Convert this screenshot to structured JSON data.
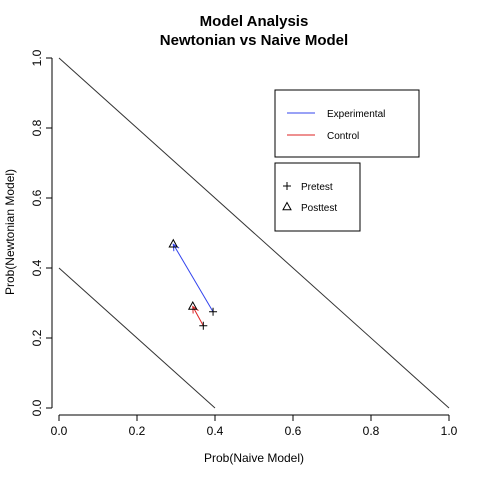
{
  "chart_data": {
    "type": "scatter",
    "title": "Model Analysis",
    "subtitle": "Newtonian vs Naive Model",
    "xlabel": "Prob(Naive Model)",
    "ylabel": "Prob(Newtonian Model)",
    "xlim": [
      0,
      1
    ],
    "ylim": [
      0,
      1
    ],
    "xticks": [
      "0.0",
      "0.2",
      "0.4",
      "0.6",
      "0.8",
      "1.0"
    ],
    "yticks": [
      "0.0",
      "0.2",
      "0.4",
      "0.6",
      "0.8",
      "1.0"
    ],
    "grid": false,
    "reference_lines": [
      {
        "x": [
          0,
          1
        ],
        "y": [
          1,
          0
        ],
        "color": "#333333"
      },
      {
        "x": [
          0,
          0.4
        ],
        "y": [
          0.4,
          0
        ],
        "color": "#333333"
      }
    ],
    "series": [
      {
        "name": "Experimental",
        "color": "#3344ee",
        "pretest": {
          "x": 0.395,
          "y": 0.275
        },
        "posttest": {
          "x": 0.293,
          "y": 0.468
        }
      },
      {
        "name": "Control",
        "color": "#dd2222",
        "pretest": {
          "x": 0.37,
          "y": 0.235
        },
        "posttest": {
          "x": 0.343,
          "y": 0.29
        }
      }
    ],
    "legends": [
      {
        "position": "upper-right",
        "entries": [
          {
            "label": "Experimental",
            "kind": "line",
            "color": "#3344ee"
          },
          {
            "label": "Control",
            "kind": "line",
            "color": "#dd2222"
          }
        ]
      },
      {
        "position": "middle-right",
        "entries": [
          {
            "label": "Pretest",
            "kind": "plus-symbol"
          },
          {
            "label": "Posttest",
            "kind": "triangle-symbol"
          }
        ]
      }
    ]
  }
}
